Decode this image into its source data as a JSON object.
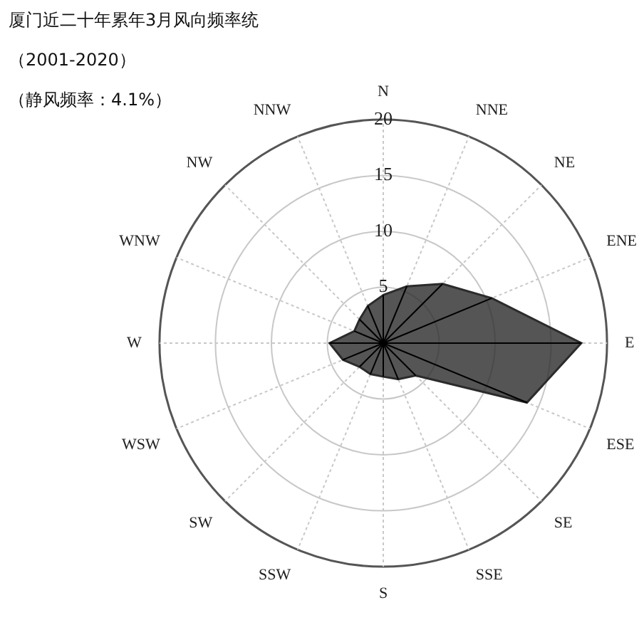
{
  "chart_data": {
    "type": "radar",
    "title": "厦门近二十年累年3月风向频率统",
    "subtitle": "（2001-2020）",
    "annotations": [
      "（静风频率：4.1%）"
    ],
    "categories": [
      "N",
      "NNE",
      "NE",
      "ENE",
      "E",
      "ESE",
      "SE",
      "SSE",
      "S",
      "SSW",
      "SW",
      "WSW",
      "W",
      "WNW",
      "NW",
      "NNW"
    ],
    "series": [
      {
        "color": "#2b2b2b",
        "values": [
          4.3,
          5.5,
          7.5,
          10.5,
          17.7,
          13.9,
          4.1,
          3.5,
          3.0,
          3.0,
          3.0,
          3.9,
          4.8,
          2.8,
          3.0,
          3.6
        ]
      }
    ],
    "ylim": [
      0,
      20
    ],
    "yticks": [
      5,
      10,
      15,
      20
    ],
    "grid": true
  }
}
